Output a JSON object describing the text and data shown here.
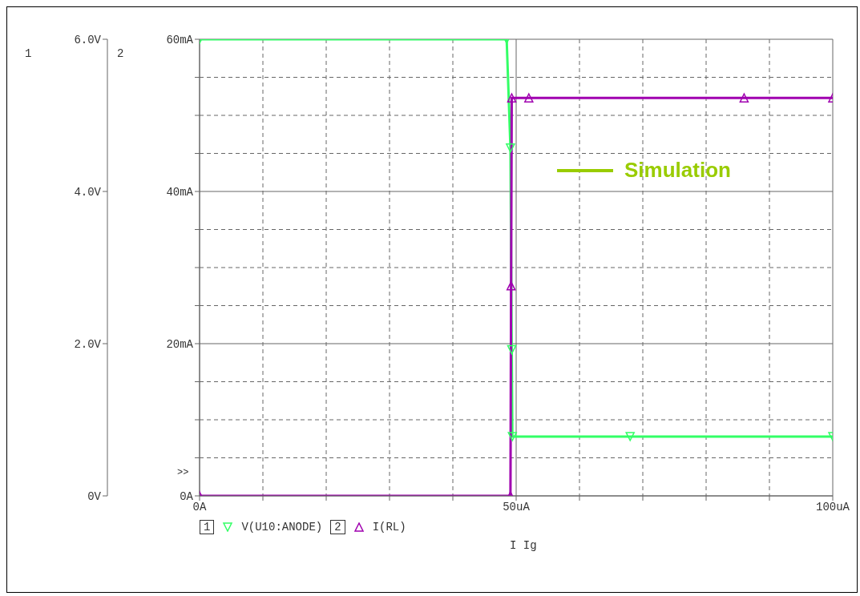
{
  "chart_data": {
    "type": "line",
    "xlabel": "I Ig",
    "xlim": [
      0,
      100
    ],
    "xticks": [
      {
        "value": 0,
        "label": "0A"
      },
      {
        "value": 10,
        "label": null
      },
      {
        "value": 20,
        "label": null
      },
      {
        "value": 30,
        "label": null
      },
      {
        "value": 40,
        "label": null
      },
      {
        "value": 50,
        "label": "50uA"
      },
      {
        "value": 60,
        "label": null
      },
      {
        "value": 70,
        "label": null
      },
      {
        "value": 80,
        "label": null
      },
      {
        "value": 90,
        "label": null
      },
      {
        "value": 100,
        "label": "100uA"
      }
    ],
    "ylim": [
      0,
      6
    ],
    "yticks": [
      {
        "value": 0,
        "label": "0V"
      },
      {
        "value": 2,
        "label": "2.0V"
      },
      {
        "value": 4,
        "label": "4.0V"
      },
      {
        "value": 6,
        "label": "6.0V"
      }
    ],
    "y2lim": [
      0,
      60
    ],
    "y2ticks": [
      {
        "value": 0,
        "label": "0A"
      },
      {
        "value": 5,
        "label": null
      },
      {
        "value": 10,
        "label": null
      },
      {
        "value": 15,
        "label": null
      },
      {
        "value": 20,
        "label": "20mA"
      },
      {
        "value": 25,
        "label": null
      },
      {
        "value": 30,
        "label": null
      },
      {
        "value": 35,
        "label": null
      },
      {
        "value": 40,
        "label": "40mA"
      },
      {
        "value": 45,
        "label": null
      },
      {
        "value": 50,
        "label": null
      },
      {
        "value": 55,
        "label": null
      },
      {
        "value": 60,
        "label": "60mA"
      }
    ],
    "grid": true,
    "legend": "bottom",
    "marker": "triangle",
    "line_style": "solid",
    "series": [
      {
        "name": "V(U10:ANODE)",
        "color": "#33ff66",
        "x": [
          0,
          48.5,
          49.1,
          49.3,
          49.4,
          68,
          100
        ],
        "values": [
          6,
          6,
          4.57,
          1.92,
          0.78,
          0.78,
          0.78
        ]
      },
      {
        "name": "I(RL)",
        "color": "#a000b0",
        "axis": "y2",
        "x": [
          0,
          49.1,
          49.2,
          49.3,
          52,
          86,
          100
        ],
        "values": [
          0,
          0,
          27.6,
          52.3,
          52.3,
          52.3,
          52.3
        ]
      }
    ],
    "annotations": [
      "Simulation",
      ">>",
      "1",
      "2"
    ]
  }
}
